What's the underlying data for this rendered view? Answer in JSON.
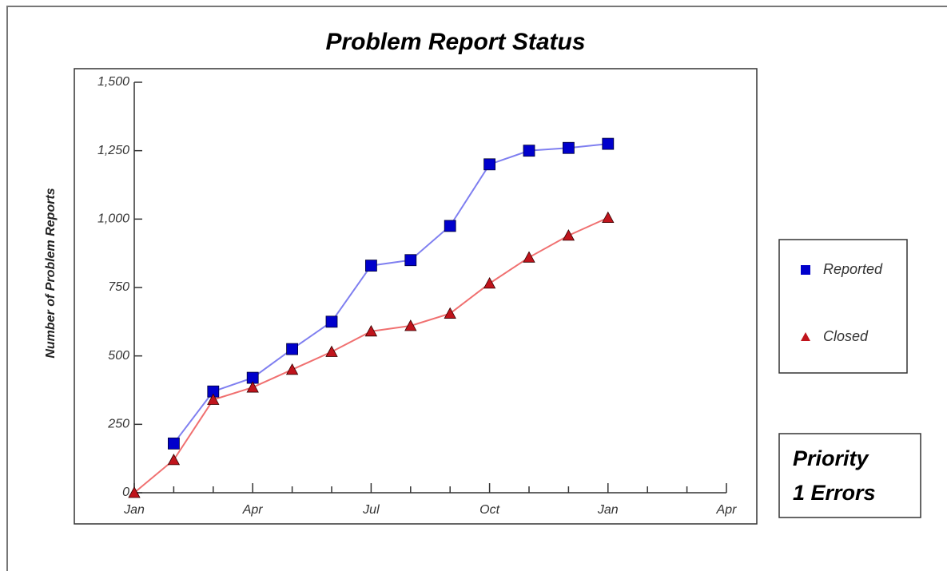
{
  "chart_data": {
    "type": "line",
    "title": "Problem Report Status",
    "y_label": "Number of Problem Reports",
    "annotation": [
      "Priority",
      "1 Errors"
    ],
    "x": [
      0,
      1,
      2,
      3,
      4,
      5,
      6,
      7,
      8,
      9,
      10,
      11,
      12
    ],
    "series": [
      {
        "name": "Reported",
        "color": "#0000cc",
        "line_color": "#7f7ff0",
        "marker": "square",
        "values": [
          null,
          180,
          370,
          420,
          525,
          625,
          830,
          850,
          975,
          1200,
          1250,
          1260,
          1275
        ]
      },
      {
        "name": "Closed",
        "color": "#c0141c",
        "line_color": "#f07070",
        "marker": "triangle",
        "values": [
          0,
          120,
          340,
          385,
          450,
          515,
          590,
          610,
          655,
          765,
          860,
          940,
          1005
        ]
      }
    ],
    "xlim": [
      0,
      15
    ],
    "xticks": [
      {
        "value": 0,
        "label": "Jan"
      },
      {
        "value": 1,
        "label": null
      },
      {
        "value": 2,
        "label": null
      },
      {
        "value": 3,
        "label": "Apr"
      },
      {
        "value": 4,
        "label": null
      },
      {
        "value": 5,
        "label": null
      },
      {
        "value": 6,
        "label": "Jul"
      },
      {
        "value": 7,
        "label": null
      },
      {
        "value": 8,
        "label": null
      },
      {
        "value": 9,
        "label": "Oct"
      },
      {
        "value": 10,
        "label": null
      },
      {
        "value": 11,
        "label": null
      },
      {
        "value": 12,
        "label": "Jan"
      },
      {
        "value": 13,
        "label": null
      },
      {
        "value": 14,
        "label": null
      },
      {
        "value": 15,
        "label": "Apr"
      }
    ],
    "ylim": [
      0,
      1500
    ],
    "yticks": [
      0,
      250,
      500,
      750,
      {
        "value": 1000,
        "label": "1,000"
      },
      {
        "value": 1250,
        "label": "1,250"
      },
      {
        "value": 1500,
        "label": "1,500"
      }
    ],
    "grid": false,
    "legend": "right"
  }
}
